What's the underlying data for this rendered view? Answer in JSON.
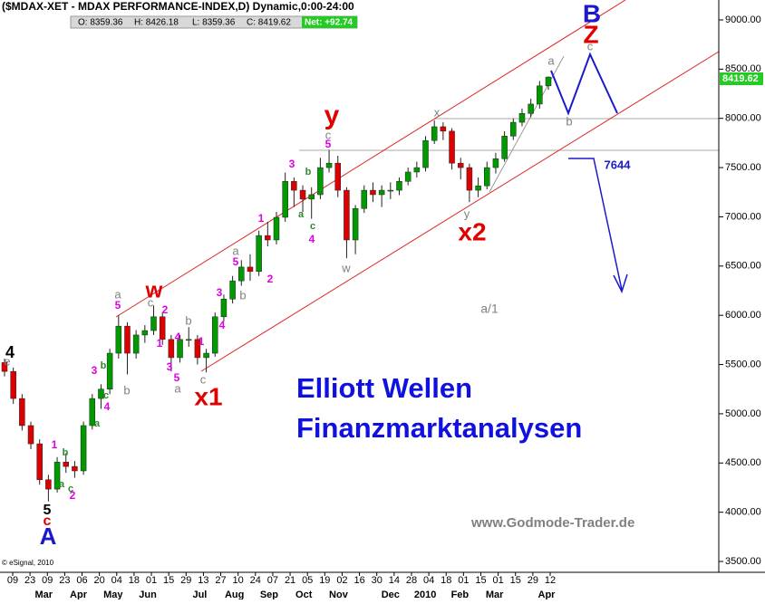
{
  "header": {
    "title": "($MDAX-XET - MDAX PERFORMANCE-INDEX,D) Dynamic,0:00-24:00",
    "ohlc": [
      "O: 8359.36",
      "H: 8426.18",
      "L: 8359.36",
      "C: 8419.62"
    ],
    "net": "Net: +92.74"
  },
  "chart_data": {
    "type": "candlestick",
    "xtick_days": [
      "09",
      "23",
      "09",
      "23",
      "06",
      "20",
      "04",
      "18",
      "01",
      "15",
      "29",
      "13",
      "27",
      "10",
      "24",
      "07",
      "21",
      "05",
      "19",
      "02",
      "16",
      "30",
      "14",
      "28",
      "04",
      "18",
      "01",
      "15",
      "01",
      "15",
      "29",
      "12"
    ],
    "xtick_months": [
      null,
      null,
      "Mar",
      null,
      "Apr",
      null,
      "May",
      null,
      "Jun",
      null,
      null,
      "Jul",
      null,
      "Aug",
      null,
      "Sep",
      null,
      "Oct",
      null,
      "Nov",
      null,
      null,
      "Dec",
      null,
      "2010",
      null,
      "Feb",
      null,
      "Mar",
      null,
      null,
      "Apr"
    ],
    "open": [
      5520,
      5430,
      5155,
      4880,
      4695,
      4330,
      4235,
      4510,
      4465,
      4420,
      4880,
      5155,
      5250,
      5615,
      5890,
      5615,
      5800,
      5845,
      5985,
      5755,
      5570,
      5755,
      5755,
      5570,
      5615,
      5985,
      6165,
      6350,
      6490,
      6445,
      6810,
      6765,
      6995,
      7360,
      7270,
      7180,
      7225,
      7500,
      7545,
      7270,
      6765,
      7085,
      7270,
      7225,
      7270,
      7270,
      7360,
      7455,
      7500,
      7775,
      7915,
      7870,
      7545,
      7500,
      7270,
      7315,
      7500,
      7590,
      7820,
      7960,
      8050,
      8145,
      8330
    ],
    "high": [
      5560,
      5470,
      5200,
      4920,
      4740,
      4380,
      4560,
      4600,
      4520,
      4920,
      5200,
      5300,
      5660,
      6000,
      5930,
      5850,
      5900,
      6100,
      6030,
      5800,
      5800,
      5880,
      5800,
      5660,
      6030,
      6210,
      6400,
      6560,
      6620,
      6860,
      6950,
      7050,
      7450,
      7400,
      7320,
      7300,
      7600,
      7680,
      7620,
      7300,
      7120,
      7320,
      7350,
      7320,
      7350,
      7400,
      7500,
      7560,
      7820,
      7980,
      7960,
      7900,
      7600,
      7540,
      7400,
      7560,
      7650,
      7870,
      8000,
      8100,
      8200,
      8380,
      8426.18
    ],
    "low": [
      5380,
      5100,
      4830,
      4640,
      4280,
      4110,
      4200,
      4400,
      4350,
      4380,
      4840,
      5050,
      5200,
      5560,
      5400,
      5560,
      5720,
      5800,
      5700,
      5430,
      5520,
      5680,
      5500,
      5420,
      5580,
      5940,
      6120,
      6300,
      6350,
      6400,
      6700,
      6720,
      6950,
      7100,
      7050,
      6980,
      7180,
      7450,
      7200,
      6580,
      6620,
      7040,
      7150,
      7100,
      7180,
      7220,
      7320,
      7400,
      7460,
      7740,
      7780,
      7480,
      7380,
      7150,
      7200,
      7280,
      7440,
      7560,
      7780,
      7920,
      8010,
      8100,
      8290
    ],
    "close": [
      5430,
      5155,
      4880,
      4695,
      4330,
      4235,
      4510,
      4465,
      4420,
      4880,
      5155,
      5250,
      5615,
      5890,
      5615,
      5800,
      5845,
      5985,
      5755,
      5570,
      5755,
      5755,
      5570,
      5615,
      5985,
      6165,
      6350,
      6490,
      6445,
      6810,
      6765,
      6995,
      7360,
      7270,
      7180,
      7225,
      7500,
      7545,
      7270,
      6765,
      7085,
      7270,
      7225,
      7270,
      7270,
      7360,
      7455,
      7500,
      7775,
      7915,
      7870,
      7545,
      7500,
      7270,
      7315,
      7500,
      7590,
      7820,
      7960,
      8050,
      8145,
      8330,
      8419.62
    ],
    "up_color": "#009900",
    "down_color": "#dd0000",
    "ylim": [
      3390,
      9202
    ],
    "yticks": [
      {
        "value": 3500,
        "label": "3500.00"
      },
      {
        "value": 4000,
        "label": "4000.00"
      },
      {
        "value": 4500,
        "label": "4500.00"
      },
      {
        "value": 5000,
        "label": "5000.00"
      },
      {
        "value": 5500,
        "label": "5500.00"
      },
      {
        "value": 6000,
        "label": "6000.00"
      },
      {
        "value": 6500,
        "label": "6500.00"
      },
      {
        "value": 7000,
        "label": "7000.00"
      },
      {
        "value": 7500,
        "label": "7500.00"
      },
      {
        "value": 8000,
        "label": "8000.00"
      },
      {
        "value": 8500,
        "label": "8500.00"
      },
      {
        "value": 9000,
        "label": "9000.00"
      }
    ],
    "annotations": [
      {
        "text": "B",
        "color": "#1a1acc"
      },
      {
        "text": "Z",
        "color": "#e00000"
      },
      {
        "text": "y",
        "color": "#e00000"
      },
      {
        "text": "w",
        "color": "#e00000"
      },
      {
        "text": "x1",
        "color": "#e00000"
      },
      {
        "text": "x2",
        "color": "#e00000"
      },
      {
        "text": "4",
        "color": "#000000"
      },
      {
        "text": "5",
        "color": "#000000"
      },
      {
        "text": "c",
        "color": "#e00000"
      },
      {
        "text": "A",
        "color": "#1a1acc"
      },
      {
        "text": "a",
        "color": "#808080"
      },
      {
        "text": "c",
        "color": "#808080"
      },
      {
        "text": "b",
        "color": "#808080"
      },
      {
        "text": "x",
        "color": "#808080"
      },
      {
        "text": "y",
        "color": "#808080"
      },
      {
        "text": "w",
        "color": "#808080"
      },
      {
        "text": "c",
        "color": "#808080"
      },
      {
        "text": "a",
        "color": "#808080"
      },
      {
        "text": "c",
        "color": "#808080"
      },
      {
        "text": "b",
        "color": "#808080"
      },
      {
        "text": "a",
        "color": "#808080"
      },
      {
        "text": "b",
        "color": "#808080"
      },
      {
        "text": "c",
        "color": "#808080"
      },
      {
        "text": "b",
        "color": "#808080"
      },
      {
        "text": "a",
        "color": "#808080"
      },
      {
        "text": "e",
        "color": "#808080"
      },
      {
        "text": "a/1",
        "color": "#808080"
      },
      {
        "text": "5",
        "color": "#e000e0"
      },
      {
        "text": "3",
        "color": "#e000e0"
      },
      {
        "text": "1",
        "color": "#e000e0"
      },
      {
        "text": "2",
        "color": "#e000e0"
      },
      {
        "text": "5",
        "color": "#e000e0"
      },
      {
        "text": "3",
        "color": "#e000e0"
      },
      {
        "text": "4",
        "color": "#e000e0"
      },
      {
        "text": "1",
        "color": "#e000e0"
      },
      {
        "text": "2",
        "color": "#e000e0"
      },
      {
        "text": "1",
        "color": "#e000e0"
      },
      {
        "text": "4",
        "color": "#e000e0"
      },
      {
        "text": "3",
        "color": "#e000e0"
      },
      {
        "text": "5",
        "color": "#e000e0"
      },
      {
        "text": "5",
        "color": "#e000e0"
      },
      {
        "text": "3",
        "color": "#e000e0"
      },
      {
        "text": "4",
        "color": "#e000e0"
      },
      {
        "text": "1",
        "color": "#e000e0"
      },
      {
        "text": "2",
        "color": "#e000e0"
      },
      {
        "text": "4",
        "color": "#e000e0"
      },
      {
        "text": "b",
        "color": "#2a8a2a"
      },
      {
        "text": "a",
        "color": "#2a8a2a"
      },
      {
        "text": "c",
        "color": "#2a8a2a"
      },
      {
        "text": "b",
        "color": "#2a8a2a"
      },
      {
        "text": "c",
        "color": "#2a8a2a"
      },
      {
        "text": "a",
        "color": "#2a8a2a"
      },
      {
        "text": "b",
        "color": "#2a8a2a"
      },
      {
        "text": "a",
        "color": "#2a8a2a"
      },
      {
        "text": "c",
        "color": "#2a8a2a"
      },
      {
        "text": "7644",
        "color": "#1a1acc"
      },
      {
        "text": "Elliott Wellen",
        "color": "#1010e0"
      },
      {
        "text": "Finanzmarktanalysen",
        "color": "#1010e0"
      },
      {
        "text": "www.Godmode-Trader.de",
        "color": "#808080"
      },
      {
        "text": "© eSignal, 2010",
        "color": "#000000"
      }
    ]
  }
}
